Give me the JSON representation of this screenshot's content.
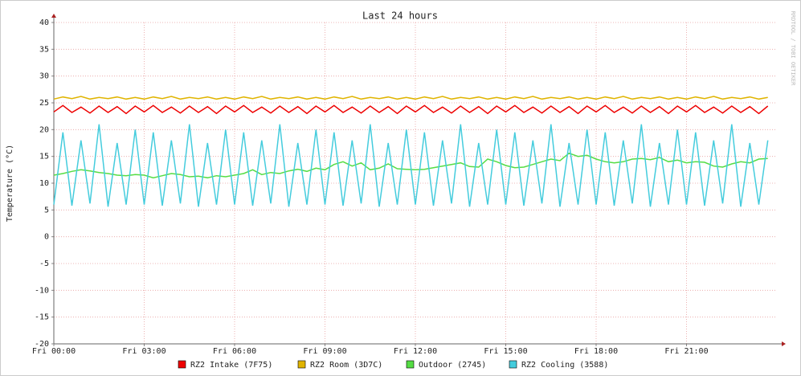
{
  "chart_data": {
    "type": "line",
    "title": "Last 24 hours",
    "y_label": "Temperature (°C)",
    "side_text": "RRDTOOL / TOBI OETIKER",
    "xlim": [
      0,
      24
    ],
    "ylim": [
      -20,
      40
    ],
    "yticks": [
      -20,
      -15,
      -10,
      -5,
      0,
      5,
      10,
      15,
      20,
      25,
      30,
      35,
      40
    ],
    "xticks": [
      {
        "value": 0,
        "label": "Fri 00:00"
      },
      {
        "value": 3,
        "label": "Fri 03:00"
      },
      {
        "value": 6,
        "label": "Fri 06:00"
      },
      {
        "value": 9,
        "label": "Fri 09:00"
      },
      {
        "value": 12,
        "label": "Fri 12:00"
      },
      {
        "value": 15,
        "label": "Fri 15:00"
      },
      {
        "value": 18,
        "label": "Fri 18:00"
      },
      {
        "value": 21,
        "label": "Fri 21:00"
      }
    ],
    "grid": true,
    "legend": "bottom",
    "x": [
      0,
      0.3,
      0.6,
      0.9,
      1.2,
      1.5,
      1.8,
      2.1,
      2.4,
      2.7,
      3,
      3.3,
      3.6,
      3.9,
      4.2,
      4.5,
      4.8,
      5.1,
      5.4,
      5.7,
      6,
      6.3,
      6.6,
      6.9,
      7.2,
      7.5,
      7.8,
      8.1,
      8.4,
      8.7,
      9,
      9.3,
      9.6,
      9.9,
      10.2,
      10.5,
      10.8,
      11.1,
      11.4,
      11.7,
      12,
      12.3,
      12.6,
      12.9,
      13.2,
      13.5,
      13.8,
      14.1,
      14.4,
      14.7,
      15,
      15.3,
      15.6,
      15.9,
      16.2,
      16.5,
      16.8,
      17.1,
      17.4,
      17.7,
      18,
      18.3,
      18.6,
      18.9,
      19.2,
      19.5,
      19.8,
      20.1,
      20.4,
      20.7,
      21,
      21.3,
      21.6,
      21.9,
      22.2,
      22.5,
      22.8,
      23.1,
      23.4,
      23.7
    ],
    "series": [
      {
        "name": "RZ2 Intake (7F75)",
        "color": "#ee0000",
        "values": [
          23.3,
          24.5,
          23.2,
          24.2,
          23.1,
          24.4,
          23.2,
          24.3,
          23.0,
          24.4,
          23.3,
          24.5,
          23.2,
          24.2,
          23.1,
          24.4,
          23.2,
          24.3,
          23.0,
          24.4,
          23.3,
          24.5,
          23.2,
          24.2,
          23.1,
          24.4,
          23.2,
          24.3,
          23.0,
          24.4,
          23.3,
          24.5,
          23.2,
          24.2,
          23.1,
          24.4,
          23.2,
          24.3,
          23.0,
          24.4,
          23.3,
          24.5,
          23.2,
          24.2,
          23.1,
          24.4,
          23.2,
          24.3,
          23.0,
          24.4,
          23.3,
          24.5,
          23.2,
          24.2,
          23.1,
          24.4,
          23.2,
          24.3,
          23.0,
          24.4,
          23.3,
          24.5,
          23.2,
          24.2,
          23.1,
          24.4,
          23.2,
          24.3,
          23.0,
          24.4,
          23.3,
          24.5,
          23.2,
          24.2,
          23.1,
          24.4,
          23.2,
          24.3,
          23.0,
          24.4
        ]
      },
      {
        "name": "RZ2 Room (3D7C)",
        "color": "#e0b400",
        "values": [
          25.7,
          26.1,
          25.8,
          26.2,
          25.7,
          26.0,
          25.8,
          26.1,
          25.7,
          26.0,
          25.7,
          26.1,
          25.8,
          26.2,
          25.7,
          26.0,
          25.8,
          26.1,
          25.7,
          26.0,
          25.7,
          26.1,
          25.8,
          26.2,
          25.7,
          26.0,
          25.8,
          26.1,
          25.7,
          26.0,
          25.7,
          26.1,
          25.8,
          26.2,
          25.7,
          26.0,
          25.8,
          26.1,
          25.7,
          26.0,
          25.7,
          26.1,
          25.8,
          26.2,
          25.7,
          26.0,
          25.8,
          26.1,
          25.7,
          26.0,
          25.7,
          26.1,
          25.8,
          26.2,
          25.7,
          26.0,
          25.8,
          26.1,
          25.7,
          26.0,
          25.7,
          26.1,
          25.8,
          26.2,
          25.7,
          26.0,
          25.8,
          26.1,
          25.7,
          26.0,
          25.7,
          26.1,
          25.8,
          26.2,
          25.7,
          26.0,
          25.8,
          26.1,
          25.7,
          26.0
        ]
      },
      {
        "name": "Outdoor (2745)",
        "color": "#55dd44",
        "values": [
          11.5,
          11.8,
          12.2,
          12.5,
          12.3,
          12.0,
          11.8,
          11.5,
          11.4,
          11.6,
          11.5,
          11.0,
          11.4,
          11.8,
          11.6,
          11.2,
          11.3,
          11.0,
          11.4,
          11.2,
          11.5,
          11.8,
          12.5,
          11.6,
          12.0,
          11.8,
          12.3,
          12.6,
          12.2,
          12.8,
          12.5,
          13.5,
          14.0,
          13.2,
          13.8,
          12.5,
          12.8,
          13.6,
          12.7,
          12.6,
          12.5,
          12.6,
          12.9,
          13.2,
          13.5,
          13.8,
          13.1,
          13.0,
          14.5,
          14.0,
          13.3,
          12.9,
          13.0,
          13.5,
          14.0,
          14.5,
          14.2,
          15.6,
          15.0,
          15.2,
          14.5,
          14.0,
          13.8,
          14.0,
          14.5,
          14.6,
          14.4,
          14.8,
          14.0,
          14.3,
          13.8,
          14.0,
          13.9,
          13.2,
          13.0,
          13.6,
          14.0,
          13.8,
          14.5,
          14.6
        ]
      },
      {
        "name": "RZ2 Cooling (3588)",
        "color": "#44ccdd",
        "values": [
          6.0,
          19.5,
          5.8,
          18.0,
          6.2,
          21.0,
          5.6,
          17.5,
          6.0,
          20.0,
          6.0,
          19.5,
          5.8,
          18.0,
          6.2,
          21.0,
          5.6,
          17.5,
          6.0,
          20.0,
          6.0,
          19.5,
          5.8,
          18.0,
          6.2,
          21.0,
          5.6,
          17.5,
          6.0,
          20.0,
          6.0,
          19.5,
          5.8,
          18.0,
          6.2,
          21.0,
          5.6,
          17.5,
          6.0,
          20.0,
          6.0,
          19.5,
          5.8,
          18.0,
          6.2,
          21.0,
          5.6,
          17.5,
          6.0,
          20.0,
          6.0,
          19.5,
          5.8,
          18.0,
          6.2,
          21.0,
          5.6,
          17.5,
          6.0,
          20.0,
          6.0,
          19.5,
          5.8,
          18.0,
          6.2,
          21.0,
          5.6,
          17.5,
          6.0,
          20.0,
          6.0,
          19.5,
          5.8,
          18.0,
          6.2,
          21.0,
          5.6,
          17.5,
          6.0,
          18.0
        ]
      }
    ]
  }
}
